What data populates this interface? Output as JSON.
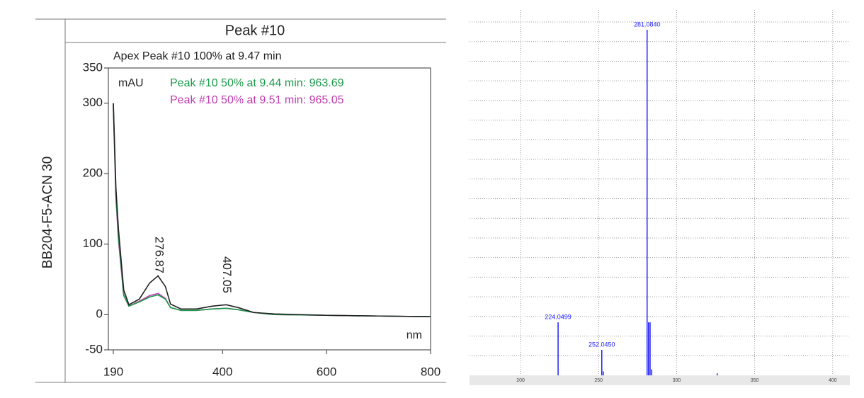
{
  "chart_data": [
    {
      "type": "line",
      "title": "Peak #10",
      "subtitle": "Apex Peak #10 100% at 9.47 min",
      "y_label": "BB204-F5-ACN 30",
      "y_unit": "mAU",
      "x_label": "nm",
      "x": [
        190,
        195,
        200,
        210,
        220,
        240,
        260,
        276,
        290,
        300,
        320,
        350,
        380,
        407,
        430,
        460,
        500,
        600,
        700,
        800
      ],
      "series": [
        {
          "name": "Apex Peak #10 100% at 9.47 min",
          "color": "#222222",
          "values": [
            300,
            180,
            120,
            35,
            14,
            22,
            45,
            55,
            40,
            15,
            8,
            8,
            12,
            14,
            10,
            3,
            1,
            -1,
            -2,
            -3
          ]
        },
        {
          "name": "Peak #10 50% at 9.44 min: 963.69",
          "color": "#1a9a4a",
          "values": [
            300,
            170,
            110,
            28,
            12,
            18,
            25,
            28,
            22,
            10,
            6,
            6,
            8,
            9,
            7,
            3,
            0,
            -1,
            -2,
            -3
          ]
        },
        {
          "name": "Peak #10 50% at 9.51 min: 965.05",
          "color": "#c03ab0",
          "values": [
            295,
            165,
            105,
            27,
            12,
            19,
            27,
            30,
            23,
            10,
            6,
            6,
            8,
            9,
            7,
            3,
            0,
            -1,
            -2,
            -3
          ]
        }
      ],
      "annotations": [
        {
          "x": 276.87,
          "label": "276.87"
        },
        {
          "x": 407.05,
          "label": "407.05"
        }
      ],
      "xlim": [
        190,
        800
      ],
      "xticks": [
        190,
        400,
        600,
        800
      ],
      "ylim": [
        -50,
        350
      ],
      "yticks": [
        -50,
        0,
        100,
        200,
        300,
        350
      ]
    },
    {
      "type": "stick",
      "color": "#2020ff",
      "x": [
        224.0499,
        252.045,
        253,
        281.084,
        282,
        283,
        284,
        326
      ],
      "values": [
        2.7,
        1.3,
        0.2,
        17.6,
        2.7,
        2.7,
        0.3,
        0.1
      ],
      "peak_labels": [
        {
          "x": 224.0499,
          "label": "224.0499"
        },
        {
          "x": 252.045,
          "label": "252.0450"
        },
        {
          "x": 281.084,
          "label": "281.0840"
        }
      ],
      "xlim": [
        167.3,
        411
      ],
      "xticks": [
        200,
        250,
        300,
        350,
        400
      ],
      "ylim": [
        0,
        18
      ],
      "yticks": [
        1,
        2,
        3,
        4,
        5,
        6,
        7,
        8,
        9,
        10,
        11,
        12,
        13,
        14,
        15,
        16,
        17,
        18
      ],
      "grid": true
    }
  ]
}
